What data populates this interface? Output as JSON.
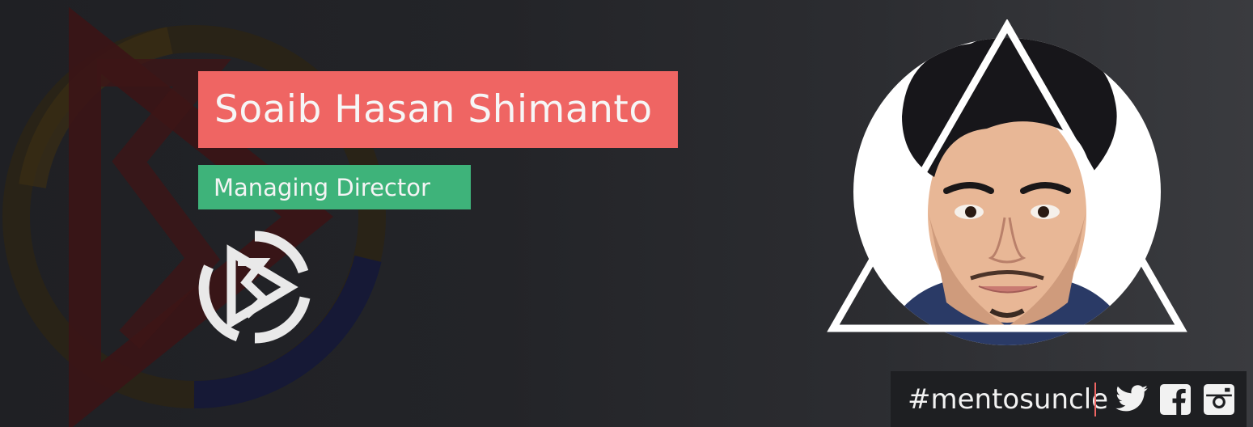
{
  "profile": {
    "name": "Soaib Hasan Shimanto",
    "role": "Managing Director"
  },
  "social": {
    "hashtag": "#mentosuncle",
    "icons": [
      "twitter-icon",
      "facebook-icon",
      "instagram-icon"
    ]
  },
  "colors": {
    "name_banner": "#ef6563",
    "role_banner": "#3eb37a",
    "background": "#232428",
    "divider": "#ef6563"
  }
}
